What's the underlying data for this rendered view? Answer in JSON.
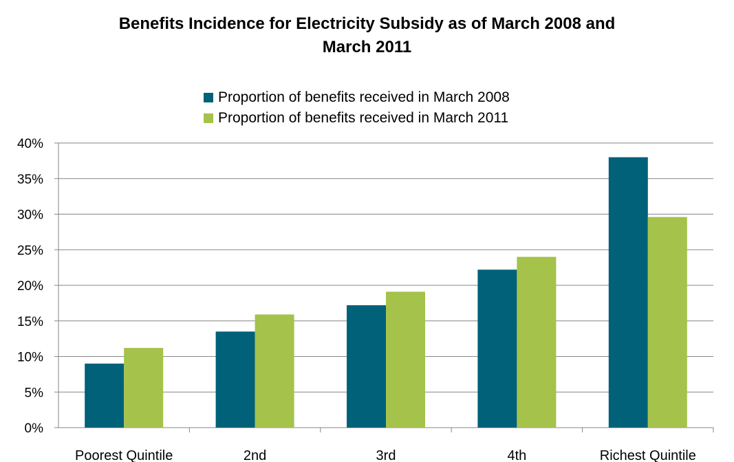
{
  "chart_data": {
    "type": "bar",
    "title_lines": [
      "Benefits Incidence for Electricity Subsidy as of March 2008 and",
      "March 2011"
    ],
    "categories": [
      "Poorest Quintile",
      "2nd",
      "3rd",
      "4th",
      "Richest Quintile"
    ],
    "series": [
      {
        "name": "Proportion of benefits received in March 2008",
        "color": "#006179",
        "values": [
          9.0,
          13.5,
          17.2,
          22.2,
          38.0
        ]
      },
      {
        "name": "Proportion of benefits received in March 2011",
        "color": "#a5c24a",
        "values": [
          11.2,
          15.9,
          19.1,
          24.0,
          29.6
        ]
      }
    ],
    "y_ticks": [
      "0%",
      "5%",
      "10%",
      "15%",
      "20%",
      "25%",
      "30%",
      "35%",
      "40%"
    ],
    "ylim": [
      0,
      40
    ],
    "y_unit": "%",
    "grid": true,
    "legend_position": "top-center"
  }
}
